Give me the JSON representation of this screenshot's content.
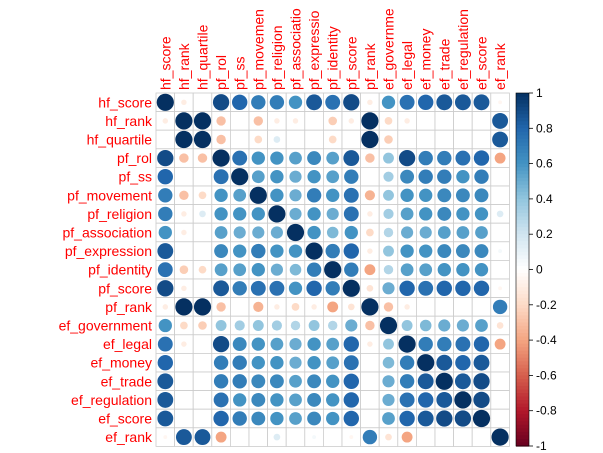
{
  "chart_data": {
    "type": "heatmap",
    "variables": [
      "hf_score",
      "hf_rank",
      "hf_quartile",
      "pf_rol",
      "pf_ss",
      "pf_movement",
      "pf_religion",
      "pf_association",
      "pf_expression",
      "pf_identity",
      "pf_score",
      "pf_rank",
      "ef_government",
      "ef_legal",
      "ef_money",
      "ef_trade",
      "ef_regulation",
      "ef_score",
      "ef_rank"
    ],
    "column_labels": [
      "hf_score",
      "hf_rank",
      "hf_quartile",
      "pf_rol",
      "pf_ss",
      "pf_movemen",
      "pf_religion",
      "pf_associatio",
      "pf_expressio",
      "pf_identity",
      "pf_score",
      "pf_rank",
      "ef_governme",
      "ef_legal",
      "ef_money",
      "ef_trade",
      "ef_regulation",
      "ef_score",
      "ef_rank"
    ],
    "matrix": [
      [
        1.0,
        -0.1,
        0.0,
        0.9,
        0.8,
        0.7,
        0.7,
        0.6,
        0.85,
        0.75,
        0.9,
        -0.1,
        0.6,
        0.75,
        0.8,
        0.85,
        0.85,
        0.85,
        -0.05
      ],
      [
        -0.1,
        1.0,
        1.0,
        -0.3,
        0.0,
        -0.3,
        -0.1,
        -0.1,
        0.0,
        -0.25,
        -0.1,
        1.0,
        -0.2,
        -0.1,
        0.0,
        0.0,
        0.0,
        0.0,
        0.85
      ],
      [
        0.0,
        1.0,
        1.0,
        -0.3,
        0.0,
        -0.2,
        0.15,
        0.0,
        0.0,
        -0.2,
        0.0,
        1.0,
        -0.25,
        0.0,
        0.0,
        0.0,
        0.0,
        0.0,
        0.85
      ],
      [
        0.9,
        -0.3,
        -0.3,
        1.0,
        0.75,
        0.6,
        0.6,
        0.55,
        0.65,
        0.55,
        0.85,
        -0.3,
        0.4,
        0.9,
        0.7,
        0.7,
        0.75,
        0.8,
        -0.4
      ],
      [
        0.8,
        0.0,
        0.0,
        0.75,
        1.0,
        0.55,
        0.6,
        0.5,
        0.6,
        0.55,
        0.7,
        0.0,
        0.35,
        0.65,
        0.7,
        0.7,
        0.6,
        0.7,
        0.0
      ],
      [
        0.7,
        -0.3,
        -0.2,
        0.6,
        0.55,
        1.0,
        0.6,
        0.5,
        0.7,
        0.6,
        0.75,
        -0.35,
        0.4,
        0.6,
        0.6,
        0.65,
        0.65,
        0.65,
        0.0
      ],
      [
        0.7,
        -0.1,
        0.15,
        0.6,
        0.6,
        0.6,
        1.0,
        0.5,
        0.6,
        0.5,
        0.75,
        -0.1,
        0.35,
        0.55,
        0.6,
        0.65,
        0.6,
        0.6,
        0.15
      ],
      [
        0.6,
        -0.1,
        0.0,
        0.55,
        0.5,
        0.5,
        0.5,
        1.0,
        0.6,
        0.45,
        0.6,
        -0.2,
        0.3,
        0.5,
        0.5,
        0.55,
        0.55,
        0.55,
        0.0
      ],
      [
        0.85,
        0.0,
        0.0,
        0.65,
        0.6,
        0.7,
        0.6,
        0.6,
        1.0,
        0.7,
        0.8,
        -0.1,
        0.4,
        0.6,
        0.6,
        0.65,
        0.65,
        0.65,
        0.05
      ],
      [
        0.75,
        -0.25,
        -0.2,
        0.55,
        0.55,
        0.6,
        0.5,
        0.45,
        0.7,
        1.0,
        0.7,
        -0.4,
        0.3,
        0.55,
        0.55,
        0.6,
        0.6,
        0.6,
        0.0
      ],
      [
        0.9,
        -0.1,
        0.0,
        0.85,
        0.7,
        0.75,
        0.75,
        0.6,
        0.8,
        0.7,
        1.0,
        -0.15,
        0.5,
        0.8,
        0.75,
        0.8,
        0.8,
        0.8,
        -0.05
      ],
      [
        -0.1,
        1.0,
        1.0,
        -0.3,
        0.0,
        -0.35,
        -0.1,
        -0.2,
        -0.1,
        -0.4,
        -0.15,
        1.0,
        -0.3,
        -0.1,
        0.0,
        0.0,
        0.0,
        0.0,
        0.7
      ],
      [
        0.6,
        -0.2,
        -0.25,
        0.4,
        0.35,
        0.4,
        0.35,
        0.3,
        0.4,
        0.3,
        0.5,
        -0.3,
        1.0,
        0.4,
        0.45,
        0.5,
        0.5,
        0.55,
        -0.15
      ],
      [
        0.75,
        -0.1,
        0.0,
        0.9,
        0.65,
        0.6,
        0.55,
        0.5,
        0.6,
        0.55,
        0.8,
        -0.1,
        0.4,
        1.0,
        0.7,
        0.7,
        0.75,
        0.8,
        -0.4
      ],
      [
        0.8,
        0.0,
        0.0,
        0.7,
        0.7,
        0.6,
        0.6,
        0.5,
        0.6,
        0.55,
        0.75,
        0.0,
        0.45,
        0.7,
        1.0,
        0.85,
        0.8,
        0.85,
        0.0
      ],
      [
        0.85,
        0.0,
        0.0,
        0.7,
        0.7,
        0.65,
        0.65,
        0.55,
        0.65,
        0.6,
        0.8,
        0.0,
        0.5,
        0.7,
        0.85,
        1.0,
        0.85,
        0.9,
        0.0
      ],
      [
        0.85,
        0.0,
        0.0,
        0.75,
        0.6,
        0.65,
        0.6,
        0.55,
        0.65,
        0.6,
        0.8,
        0.0,
        0.5,
        0.75,
        0.8,
        0.85,
        1.0,
        0.9,
        0.0
      ],
      [
        0.85,
        0.0,
        0.0,
        0.8,
        0.7,
        0.65,
        0.6,
        0.55,
        0.65,
        0.6,
        0.8,
        0.0,
        0.55,
        0.8,
        0.85,
        0.9,
        0.9,
        1.0,
        0.0
      ],
      [
        -0.05,
        0.85,
        0.85,
        -0.4,
        0.0,
        0.0,
        0.15,
        0.0,
        0.05,
        0.0,
        -0.05,
        0.7,
        -0.15,
        -0.4,
        0.0,
        0.0,
        0.0,
        0.0,
        1.0
      ]
    ],
    "colorbar": {
      "range": [
        -1,
        1
      ],
      "ticks": [
        1,
        0.8,
        0.6,
        0.4,
        0.2,
        0,
        -0.2,
        -0.4,
        -0.6,
        -0.8,
        -1
      ],
      "tick_labels": [
        "1",
        "0.8",
        "0.6",
        "0.4",
        "0.2",
        "0",
        "-0.2",
        "-0.4",
        "-0.6",
        "-0.8",
        "-1"
      ]
    },
    "colors": {
      "negative_end": "#67001f",
      "positive_end": "#053061",
      "label_color": "#ff0000",
      "grid_color": "#cccccc"
    },
    "legend_position": "right"
  }
}
